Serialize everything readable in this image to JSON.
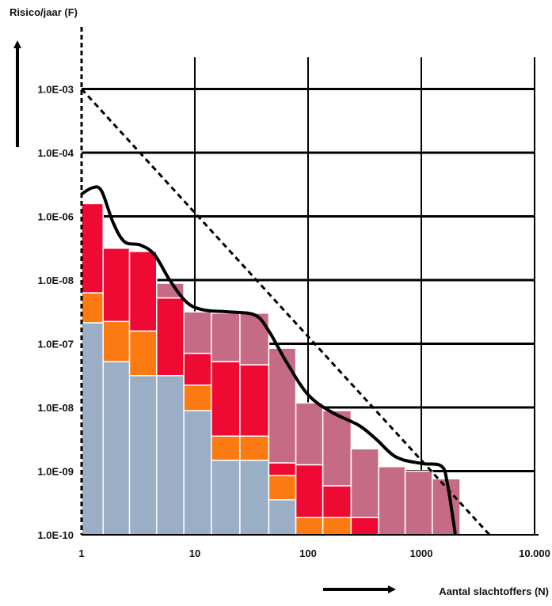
{
  "chart_data": {
    "type": "bar",
    "ylabel": "Risico/jaar (F)",
    "xlabel": "Aantal slachtoffers (N)",
    "x_scale": "log",
    "y_scale": "log",
    "xlim": [
      1,
      10000
    ],
    "x_ticks": [
      {
        "value": 1,
        "label": "1"
      },
      {
        "value": 10,
        "label": "10"
      },
      {
        "value": 100,
        "label": "100"
      },
      {
        "value": 1000,
        "label": "1000"
      },
      {
        "value": 10000,
        "label": "10.000"
      }
    ],
    "y_ticks": [
      {
        "level": 0,
        "label": "1.0E-10"
      },
      {
        "level": 1,
        "label": "1.0E-09"
      },
      {
        "level": 2,
        "label": "1.0E-08"
      },
      {
        "level": 3,
        "label": "1.0E-07"
      },
      {
        "level": 4,
        "label": "1.0E-08"
      },
      {
        "level": 5,
        "label": "1.0E-06"
      },
      {
        "level": 6,
        "label": "1.0E-04"
      },
      {
        "level": 7,
        "label": "1.0E-03"
      }
    ],
    "colors": {
      "blue": "#9aafc6",
      "orange": "#fb7a12",
      "red": "#ee0a33",
      "mauve": "#c56b85",
      "grid": "#000000",
      "background": "#ffffff"
    },
    "bars": [
      {
        "x0": 1.0,
        "x1": 1.55,
        "segments": [
          {
            "color": "blue",
            "top": 3.33
          },
          {
            "color": "orange",
            "top": 3.8
          },
          {
            "color": "red",
            "top": 5.2
          }
        ]
      },
      {
        "x0": 1.55,
        "x1": 2.65,
        "segments": [
          {
            "color": "blue",
            "top": 2.72
          },
          {
            "color": "orange",
            "top": 3.35
          },
          {
            "color": "red",
            "top": 4.5
          }
        ]
      },
      {
        "x0": 2.65,
        "x1": 4.6,
        "segments": [
          {
            "color": "blue",
            "top": 2.5
          },
          {
            "color": "orange",
            "top": 3.2
          },
          {
            "color": "red",
            "top": 4.45
          }
        ]
      },
      {
        "x0": 4.6,
        "x1": 8.0,
        "segments": [
          {
            "color": "blue",
            "top": 2.5
          },
          {
            "color": "red",
            "top": 3.72
          },
          {
            "color": "mauve",
            "top": 3.95
          }
        ]
      },
      {
        "x0": 8.0,
        "x1": 14.0,
        "segments": [
          {
            "color": "blue",
            "top": 1.95
          },
          {
            "color": "orange",
            "top": 2.35
          },
          {
            "color": "red",
            "top": 2.85
          },
          {
            "color": "mauve",
            "top": 3.5
          }
        ]
      },
      {
        "x0": 14.0,
        "x1": 25.0,
        "segments": [
          {
            "color": "blue",
            "top": 1.17
          },
          {
            "color": "orange",
            "top": 1.55
          },
          {
            "color": "red",
            "top": 2.72
          },
          {
            "color": "mauve",
            "top": 3.48
          }
        ]
      },
      {
        "x0": 25.0,
        "x1": 45.0,
        "segments": [
          {
            "color": "blue",
            "top": 1.17
          },
          {
            "color": "orange",
            "top": 1.55
          },
          {
            "color": "red",
            "top": 2.67
          },
          {
            "color": "mauve",
            "top": 3.48
          }
        ]
      },
      {
        "x0": 45.0,
        "x1": 78.0,
        "segments": [
          {
            "color": "blue",
            "top": 0.55
          },
          {
            "color": "orange",
            "top": 0.93
          },
          {
            "color": "red",
            "top": 1.13
          },
          {
            "color": "mauve",
            "top": 2.93
          }
        ]
      },
      {
        "x0": 78.0,
        "x1": 135.0,
        "segments": [
          {
            "color": "orange",
            "top": 0.27
          },
          {
            "color": "red",
            "top": 1.1
          },
          {
            "color": "mauve",
            "top": 2.07
          }
        ]
      },
      {
        "x0": 135.0,
        "x1": 240.0,
        "segments": [
          {
            "color": "orange",
            "top": 0.27
          },
          {
            "color": "red",
            "top": 0.77
          },
          {
            "color": "mauve",
            "top": 1.95
          }
        ]
      },
      {
        "x0": 240.0,
        "x1": 420.0,
        "segments": [
          {
            "color": "red",
            "top": 0.27
          },
          {
            "color": "mauve",
            "top": 1.35
          }
        ]
      },
      {
        "x0": 420.0,
        "x1": 720.0,
        "segments": [
          {
            "color": "mauve",
            "top": 1.07
          }
        ]
      },
      {
        "x0": 720.0,
        "x1": 1250.0,
        "segments": [
          {
            "color": "mauve",
            "top": 1.0
          }
        ]
      },
      {
        "x0": 1250.0,
        "x1": 2200.0,
        "segments": [
          {
            "color": "mauve",
            "top": 0.88
          }
        ]
      }
    ],
    "fn_curve": [
      [
        1.0,
        5.35
      ],
      [
        1.25,
        5.45
      ],
      [
        1.5,
        5.4
      ],
      [
        1.9,
        4.9
      ],
      [
        2.4,
        4.6
      ],
      [
        3.3,
        4.55
      ],
      [
        4.4,
        4.4
      ],
      [
        6.0,
        4.0
      ],
      [
        8.5,
        3.65
      ],
      [
        12.0,
        3.53
      ],
      [
        20.0,
        3.5
      ],
      [
        34.0,
        3.45
      ],
      [
        45.0,
        3.2
      ],
      [
        65.0,
        2.7
      ],
      [
        100.0,
        2.2
      ],
      [
        160.0,
        1.93
      ],
      [
        280.0,
        1.72
      ],
      [
        400.0,
        1.5
      ],
      [
        600.0,
        1.22
      ],
      [
        1000.0,
        1.12
      ],
      [
        1500.0,
        1.08
      ],
      [
        1700.0,
        0.8
      ],
      [
        2000.0,
        0.0
      ]
    ],
    "limit_line": [
      [
        1.0,
        7.0
      ],
      [
        4000.0,
        0.0
      ]
    ]
  }
}
